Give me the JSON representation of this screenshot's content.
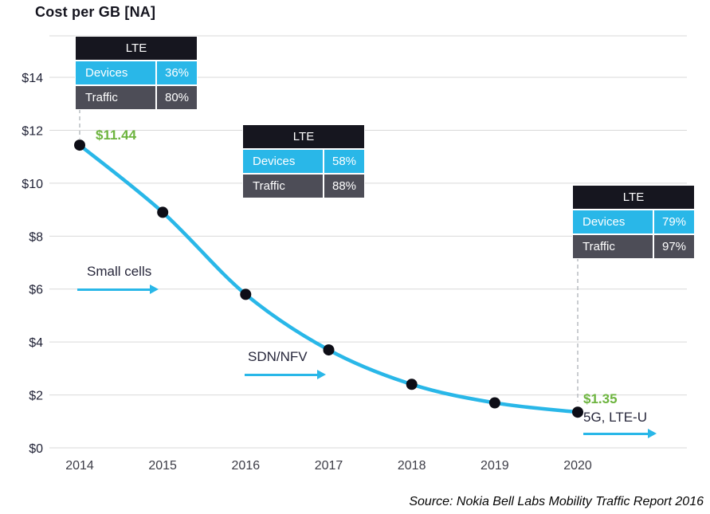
{
  "title": "Cost per GB [NA]",
  "source": "Source: Nokia Bell Labs Mobility Traffic Report 2016",
  "colors": {
    "line": "#29b7e8",
    "point": "#0d0d16",
    "grid": "#d9d9d9",
    "dropline": "#b9bdc2",
    "axis_y": "#1f2135",
    "axis_x": "#3c3c46",
    "green": "#6db43f",
    "table_header_bg": "#16161f",
    "devices_row_bg": "#29b7e8",
    "traffic_row_bg": "#4d4d57"
  },
  "chart_data": {
    "type": "line",
    "title": "Cost per GB [NA]",
    "xlabel": "",
    "ylabel": "Cost per GB ($)",
    "x": [
      2014,
      2015,
      2016,
      2017,
      2018,
      2019,
      2020
    ],
    "values": [
      11.44,
      8.9,
      5.8,
      3.7,
      2.4,
      1.7,
      1.35
    ],
    "ylim": [
      0,
      14
    ],
    "ytick_values": [
      0,
      2,
      4,
      6,
      8,
      10,
      12,
      14
    ],
    "yticks": [
      "$0",
      "$2",
      "$4",
      "$6",
      "$8",
      "$10",
      "$12",
      "$14"
    ],
    "grid": true,
    "legend": false,
    "point_labels": [
      {
        "x": 2014,
        "text": "$11.44"
      },
      {
        "x": 2020,
        "text": "$1.35"
      }
    ]
  },
  "tables": [
    {
      "title": "LTE",
      "rows": [
        {
          "label": "Devices",
          "value": "36%"
        },
        {
          "label": "Traffic",
          "value": "80%"
        }
      ]
    },
    {
      "title": "LTE",
      "rows": [
        {
          "label": "Devices",
          "value": "58%"
        },
        {
          "label": "Traffic",
          "value": "88%"
        }
      ]
    },
    {
      "title": "LTE",
      "rows": [
        {
          "label": "Devices",
          "value": "79%"
        },
        {
          "label": "Traffic",
          "value": "97%"
        }
      ]
    }
  ],
  "annotations": {
    "start_value": "$11.44",
    "end_value": "$1.35",
    "small_cells": "Small cells",
    "sdn_nfv": "SDN/NFV",
    "five_g": "5G, LTE-U"
  }
}
